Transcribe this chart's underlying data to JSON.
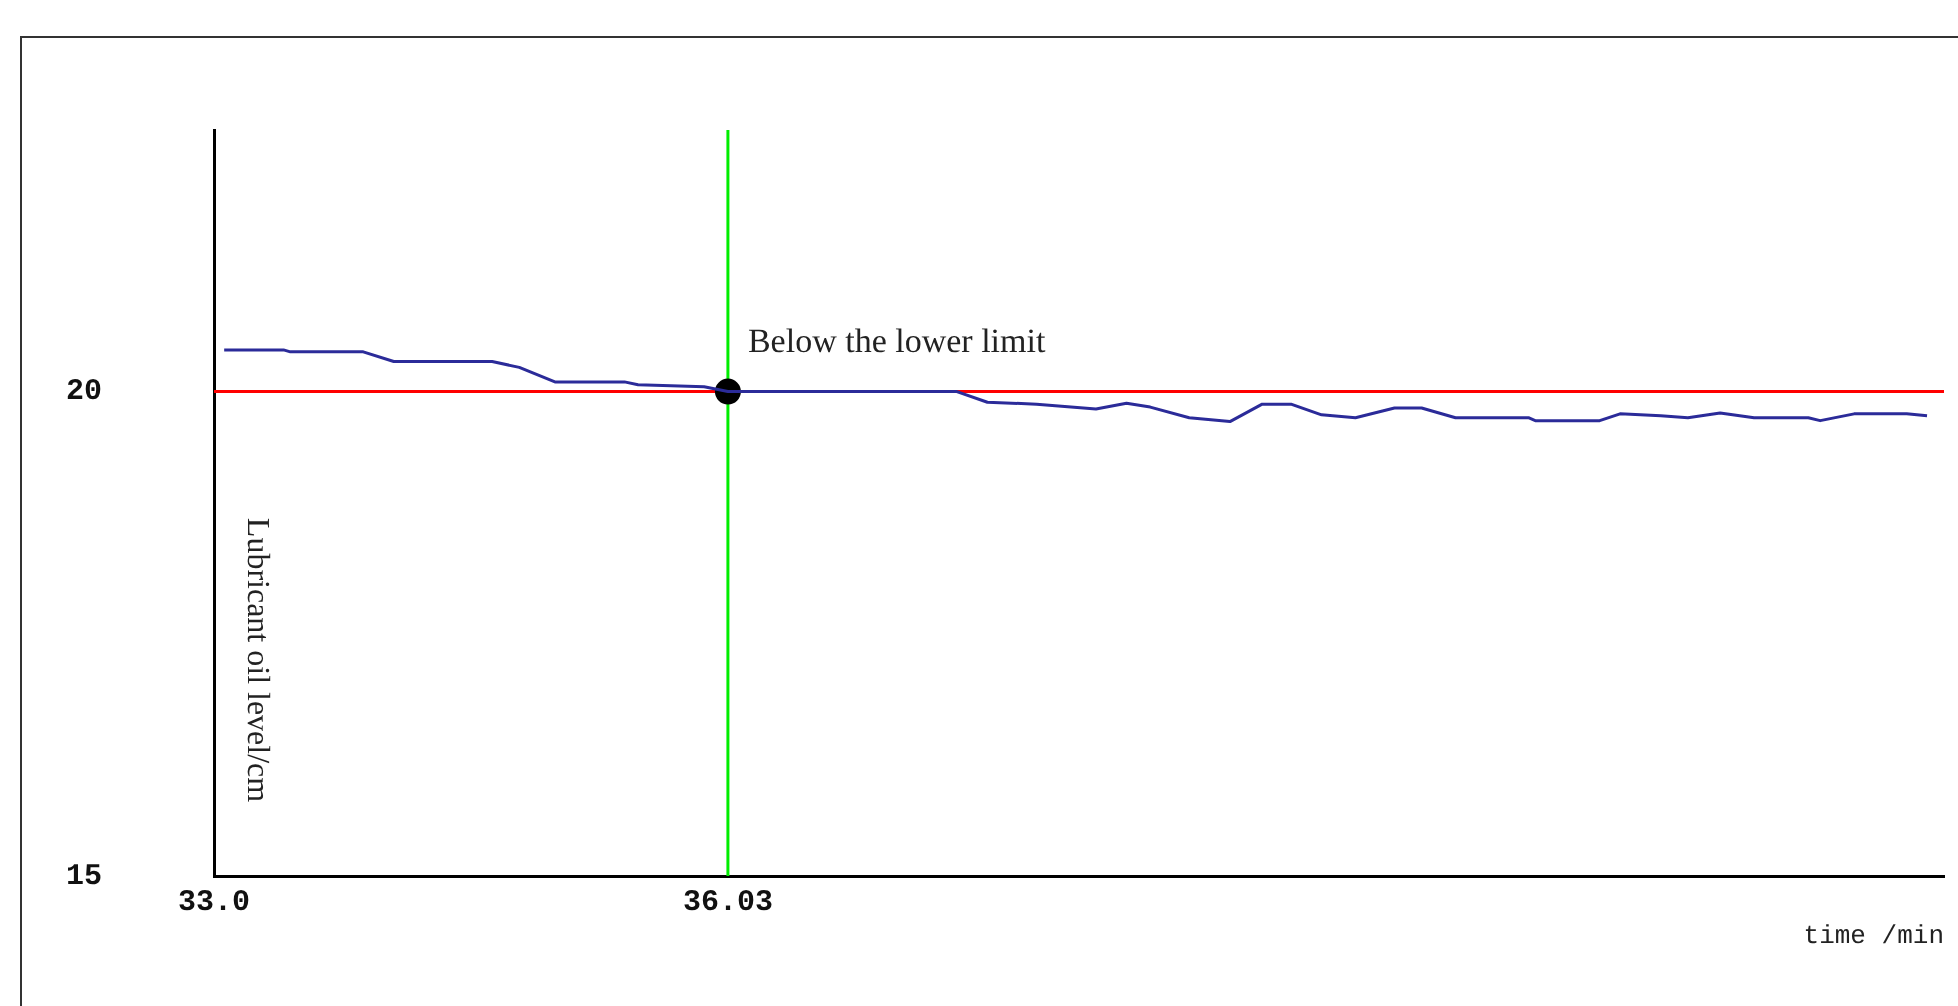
{
  "chart_data": {
    "type": "line",
    "xlabel": "time /min",
    "ylabel": "Lubricant oil level/cm",
    "xlim": [
      33.0,
      43.2
    ],
    "ylim": [
      15,
      22.7
    ],
    "xticks": [
      {
        "value": 33.0,
        "label": "33.0"
      },
      36.03
    ],
    "yticks": [
      15,
      20
    ],
    "legend": false,
    "marker": "none",
    "line_style": "solid",
    "series": [
      {
        "type": "line",
        "color": "#2b2b99",
        "x": [
          33.06,
          33.41,
          33.45,
          33.88,
          34.06,
          34.64,
          34.8,
          35.01,
          35.42,
          35.5,
          35.89,
          36.03,
          37.38,
          37.56,
          37.85,
          38.2,
          38.38,
          38.52,
          38.75,
          38.99,
          39.18,
          39.35,
          39.53,
          39.73,
          39.96,
          40.12,
          40.32,
          40.75,
          40.79,
          41.17,
          41.29,
          41.53,
          41.69,
          41.88,
          42.08,
          42.4,
          42.47,
          42.67,
          42.98,
          43.1
        ],
        "values": [
          20.43,
          20.43,
          20.41,
          20.41,
          20.31,
          20.31,
          20.25,
          20.1,
          20.1,
          20.07,
          20.05,
          20.0,
          20.0,
          19.89,
          19.87,
          19.82,
          19.88,
          19.84,
          19.73,
          19.69,
          19.87,
          19.87,
          19.76,
          19.73,
          19.83,
          19.83,
          19.73,
          19.73,
          19.7,
          19.7,
          19.77,
          19.75,
          19.73,
          19.78,
          19.73,
          19.73,
          19.7,
          19.77,
          19.77,
          19.75
        ]
      },
      {
        "type": "scatter",
        "color": "#000000",
        "marker": "circle",
        "x": [
          36.03
        ],
        "values": [
          20.0
        ]
      }
    ],
    "ref_lines": [
      {
        "axis": "y",
        "value": 20,
        "color": "#ff0000"
      },
      {
        "axis": "x",
        "value": 36.03,
        "color": "#00ee00"
      }
    ],
    "annotations": [
      {
        "text": "Below the lower limit",
        "x": 36.03,
        "y": 20
      }
    ]
  }
}
